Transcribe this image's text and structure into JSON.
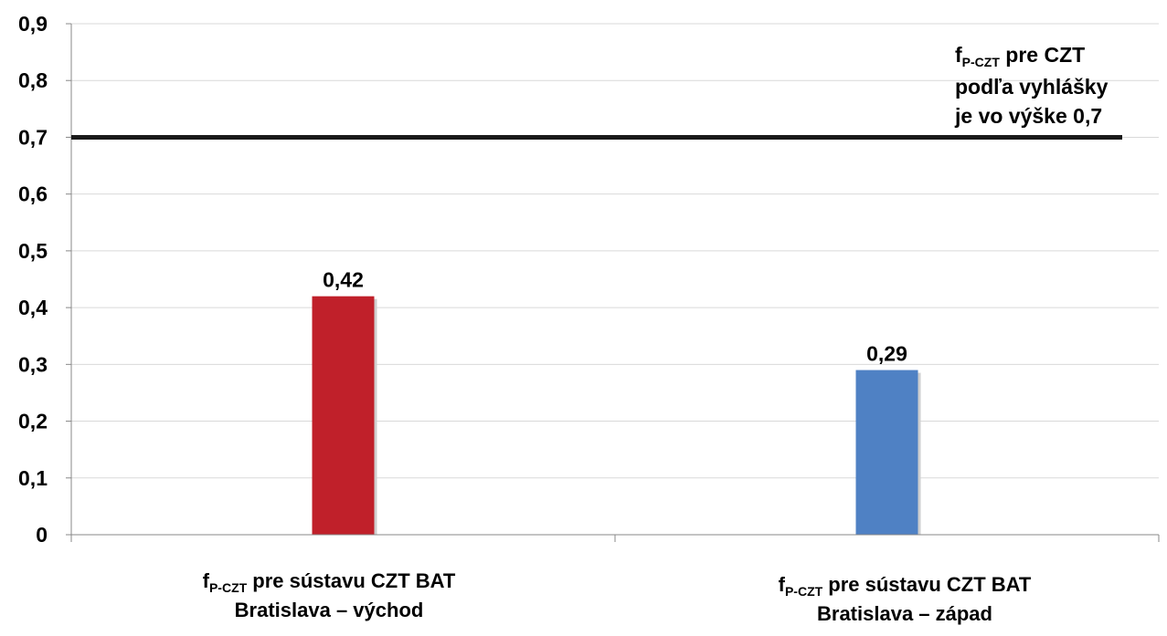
{
  "chart_data": {
    "type": "bar",
    "categories": [
      {
        "main": "f",
        "sub": "P-CZT",
        "rest": " pre sústavu CZT BAT",
        "line2": "Bratislava – východ"
      },
      {
        "main": "f",
        "sub": "P-CZT",
        "rest": " pre sústavu CZT BAT",
        "line2": "Bratislava – západ"
      }
    ],
    "values": [
      0.42,
      0.29
    ],
    "value_labels": [
      "0,42",
      "0,29"
    ],
    "colors": [
      "#c0202a",
      "#4f81c4"
    ],
    "ylim": [
      0,
      0.9
    ],
    "yticks": [
      0,
      0.1,
      0.2,
      0.3,
      0.4,
      0.5,
      0.6,
      0.7,
      0.8,
      0.9
    ],
    "ytick_labels": [
      "0",
      "0,1",
      "0,2",
      "0,3",
      "0,4",
      "0,5",
      "0,6",
      "0,7",
      "0,8",
      "0,9"
    ],
    "grid": true,
    "reference_line": {
      "value": 0.7,
      "color": "#1a1a1a",
      "label_main": "f",
      "label_sub": "P-CZT",
      "label_rest": " pre CZT",
      "label_line2": "podľa vyhlášky",
      "label_line3": "je vo výške 0,7"
    },
    "title": "",
    "xlabel": "",
    "ylabel": ""
  }
}
